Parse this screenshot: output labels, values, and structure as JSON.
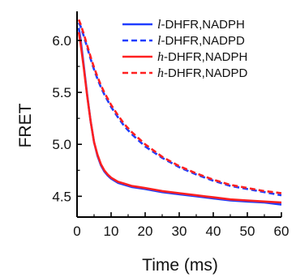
{
  "chart_data": {
    "type": "line",
    "title": "",
    "xlabel": "Time (ms)",
    "ylabel": "FRET",
    "xlim": [
      0,
      60
    ],
    "ylim": [
      4.3,
      6.28
    ],
    "xticks": [
      0,
      10,
      20,
      30,
      40,
      50,
      60
    ],
    "yticks": [
      4.5,
      5.0,
      5.5,
      6.0
    ],
    "xtick_labels": [
      "0",
      "10",
      "20",
      "30",
      "40",
      "50",
      "60"
    ],
    "ytick_labels": [
      "4.5",
      "5.0",
      "5.5",
      "6.0"
    ],
    "grid": false,
    "legend_position": "top-right",
    "x": [
      0.5,
      1,
      2,
      3,
      4,
      5,
      6,
      7,
      8,
      9,
      10,
      12,
      14,
      16,
      18,
      20,
      25,
      30,
      35,
      40,
      45,
      50,
      55,
      60
    ],
    "series": [
      {
        "name": "l-DHFR,NADPH",
        "name_prefix": "l",
        "name_rest": "-DHFR,NADPH",
        "color": "#1f3dff",
        "style": "solid",
        "values": [
          6.12,
          6.02,
          5.75,
          5.47,
          5.22,
          5.02,
          4.89,
          4.8,
          4.74,
          4.7,
          4.67,
          4.63,
          4.61,
          4.59,
          4.58,
          4.57,
          4.54,
          4.52,
          4.5,
          4.48,
          4.46,
          4.45,
          4.44,
          4.42
        ]
      },
      {
        "name": "l-DHFR,NADPD",
        "name_prefix": "l",
        "name_rest": "-DHFR,NADPD",
        "color": "#1f3dff",
        "style": "dashed",
        "values": [
          6.17,
          6.14,
          6.04,
          5.93,
          5.82,
          5.72,
          5.63,
          5.55,
          5.48,
          5.42,
          5.36,
          5.26,
          5.17,
          5.1,
          5.04,
          4.98,
          4.87,
          4.78,
          4.71,
          4.65,
          4.6,
          4.57,
          4.54,
          4.51
        ]
      },
      {
        "name": "h-DHFR,NADPH",
        "name_prefix": "h",
        "name_rest": "-DHFR,NADPH",
        "color": "#ff2020",
        "style": "solid",
        "values": [
          6.08,
          5.98,
          5.73,
          5.46,
          5.22,
          5.02,
          4.9,
          4.81,
          4.75,
          4.71,
          4.68,
          4.64,
          4.62,
          4.6,
          4.59,
          4.58,
          4.55,
          4.53,
          4.51,
          4.49,
          4.47,
          4.46,
          4.45,
          4.44
        ]
      },
      {
        "name": "h-DHFR,NADPD",
        "name_prefix": "h",
        "name_rest": "-DHFR,NADPD",
        "color": "#ff2020",
        "style": "dashed",
        "values": [
          6.2,
          6.16,
          6.06,
          5.95,
          5.84,
          5.74,
          5.65,
          5.57,
          5.5,
          5.44,
          5.38,
          5.28,
          5.19,
          5.12,
          5.06,
          5.0,
          4.88,
          4.79,
          4.72,
          4.66,
          4.61,
          4.58,
          4.55,
          4.53
        ]
      }
    ]
  }
}
